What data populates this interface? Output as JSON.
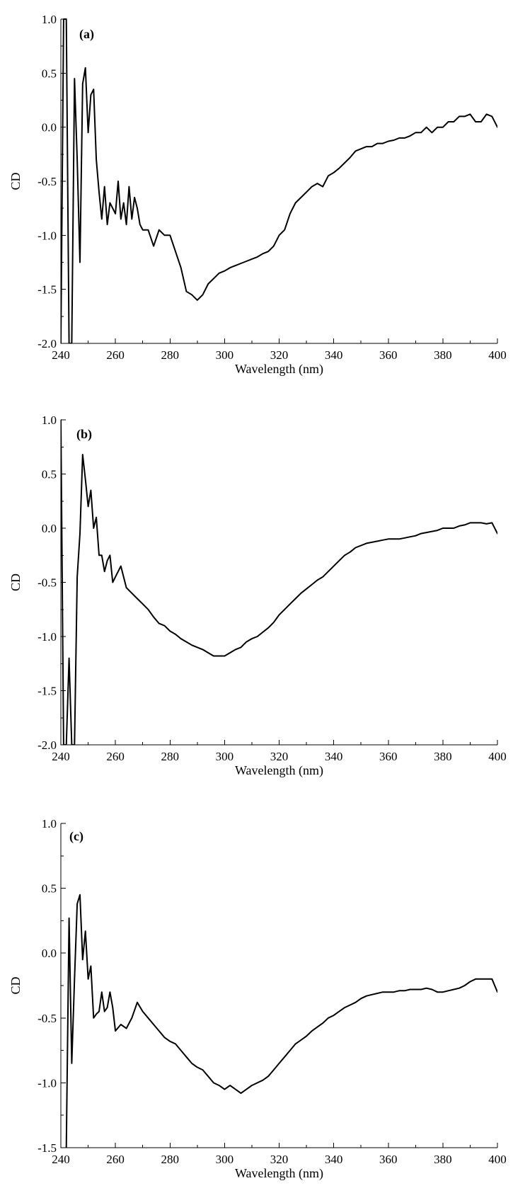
{
  "chart_data": [
    {
      "type": "line",
      "panel_label": "(a)",
      "xlabel": "Wavelength (nm)",
      "ylabel": "CD",
      "xlim": [
        240,
        400
      ],
      "ylim": [
        -2.0,
        1.0
      ],
      "xticks": [
        240,
        260,
        280,
        300,
        320,
        340,
        360,
        380,
        400
      ],
      "yticks": [
        -2.0,
        -1.5,
        -1.0,
        -0.5,
        0.0,
        0.5,
        1.0
      ],
      "xtick_labels": [
        "240",
        "260",
        "280",
        "300",
        "320",
        "340",
        "360",
        "380",
        "400"
      ],
      "ytick_labels": [
        "-2.0",
        "-1.5",
        "-1.0",
        "-0.5",
        "0.0",
        "0.5",
        "1.0"
      ],
      "grid": false,
      "series": [
        {
          "x": [
            240,
            241,
            242,
            243,
            244,
            245,
            246,
            247,
            248,
            249,
            250,
            251,
            252,
            253,
            254,
            255,
            256,
            257,
            258,
            259,
            260,
            261,
            262,
            263,
            264,
            265,
            266,
            267,
            268,
            269,
            270,
            272,
            274,
            276,
            278,
            280,
            282,
            284,
            286,
            288,
            290,
            292,
            294,
            296,
            298,
            300,
            302,
            304,
            306,
            308,
            310,
            312,
            314,
            316,
            318,
            320,
            322,
            324,
            326,
            328,
            330,
            332,
            334,
            336,
            338,
            340,
            342,
            344,
            346,
            348,
            350,
            352,
            354,
            356,
            358,
            360,
            362,
            364,
            366,
            368,
            370,
            372,
            374,
            376,
            378,
            380,
            382,
            384,
            386,
            388,
            390,
            392,
            394,
            396,
            398,
            400
          ],
          "y": [
            -2.0,
            1.0,
            1.0,
            -2.0,
            -2.0,
            0.45,
            -0.3,
            -1.25,
            0.4,
            0.55,
            -0.05,
            0.3,
            0.35,
            -0.3,
            -0.6,
            -0.85,
            -0.55,
            -0.9,
            -0.7,
            -0.75,
            -0.8,
            -0.5,
            -0.85,
            -0.7,
            -0.9,
            -0.55,
            -0.85,
            -0.65,
            -0.75,
            -0.9,
            -0.95,
            -0.95,
            -1.1,
            -0.95,
            -1.0,
            -1.0,
            -1.15,
            -1.3,
            -1.52,
            -1.55,
            -1.6,
            -1.55,
            -1.45,
            -1.4,
            -1.35,
            -1.33,
            -1.3,
            -1.28,
            -1.26,
            -1.24,
            -1.22,
            -1.2,
            -1.17,
            -1.15,
            -1.1,
            -1.0,
            -0.95,
            -0.8,
            -0.7,
            -0.65,
            -0.6,
            -0.55,
            -0.52,
            -0.55,
            -0.45,
            -0.42,
            -0.38,
            -0.33,
            -0.28,
            -0.22,
            -0.2,
            -0.18,
            -0.18,
            -0.15,
            -0.15,
            -0.13,
            -0.12,
            -0.1,
            -0.1,
            -0.08,
            -0.05,
            -0.05,
            0.0,
            -0.05,
            0.0,
            0.0,
            0.05,
            0.05,
            0.1,
            0.1,
            0.12,
            0.05,
            0.05,
            0.12,
            0.1,
            0.0
          ]
        }
      ]
    },
    {
      "type": "line",
      "panel_label": "(b)",
      "xlabel": "Wavelength (nm)",
      "ylabel": "CD",
      "xlim": [
        240,
        400
      ],
      "ylim": [
        -2.0,
        1.0
      ],
      "xticks": [
        240,
        260,
        280,
        300,
        320,
        340,
        360,
        380,
        400
      ],
      "yticks": [
        -2.0,
        -1.5,
        -1.0,
        -0.5,
        0.0,
        0.5,
        1.0
      ],
      "xtick_labels": [
        "240",
        "260",
        "280",
        "300",
        "320",
        "340",
        "360",
        "380",
        "400"
      ],
      "ytick_labels": [
        "-2.0",
        "-1.5",
        "-1.0",
        "-0.5",
        "0.0",
        "0.5",
        "1.0"
      ],
      "grid": false,
      "series": [
        {
          "x": [
            240,
            241,
            242,
            243,
            244,
            245,
            246,
            247,
            248,
            249,
            250,
            251,
            252,
            253,
            254,
            255,
            256,
            257,
            258,
            259,
            260,
            262,
            264,
            266,
            268,
            270,
            272,
            274,
            276,
            278,
            280,
            282,
            284,
            286,
            288,
            290,
            292,
            294,
            296,
            298,
            300,
            302,
            304,
            306,
            308,
            310,
            312,
            314,
            316,
            318,
            320,
            322,
            324,
            326,
            328,
            330,
            332,
            334,
            336,
            338,
            340,
            342,
            344,
            346,
            348,
            350,
            352,
            354,
            356,
            358,
            360,
            362,
            364,
            366,
            368,
            370,
            372,
            374,
            376,
            378,
            380,
            382,
            384,
            386,
            388,
            390,
            392,
            394,
            396,
            398,
            400
          ],
          "y": [
            1.0,
            -2.0,
            -2.0,
            -1.2,
            -2.0,
            -2.0,
            -0.45,
            -0.05,
            0.68,
            0.45,
            0.2,
            0.35,
            0.0,
            0.1,
            -0.25,
            -0.25,
            -0.4,
            -0.3,
            -0.25,
            -0.5,
            -0.45,
            -0.35,
            -0.55,
            -0.6,
            -0.65,
            -0.7,
            -0.75,
            -0.82,
            -0.88,
            -0.9,
            -0.95,
            -0.98,
            -1.02,
            -1.05,
            -1.08,
            -1.1,
            -1.12,
            -1.15,
            -1.18,
            -1.18,
            -1.18,
            -1.15,
            -1.12,
            -1.1,
            -1.05,
            -1.02,
            -1.0,
            -0.96,
            -0.92,
            -0.87,
            -0.8,
            -0.75,
            -0.7,
            -0.65,
            -0.6,
            -0.56,
            -0.52,
            -0.48,
            -0.45,
            -0.4,
            -0.35,
            -0.3,
            -0.25,
            -0.22,
            -0.18,
            -0.16,
            -0.14,
            -0.13,
            -0.12,
            -0.11,
            -0.1,
            -0.1,
            -0.1,
            -0.09,
            -0.08,
            -0.07,
            -0.05,
            -0.04,
            -0.03,
            -0.02,
            0.0,
            0.0,
            0.0,
            0.02,
            0.03,
            0.05,
            0.05,
            0.05,
            0.04,
            0.05,
            -0.05
          ]
        }
      ]
    },
    {
      "type": "line",
      "panel_label": "(c)",
      "xlabel": "Wavelength (nm)",
      "ylabel": "CD",
      "xlim": [
        240,
        400
      ],
      "ylim": [
        -1.5,
        1.0
      ],
      "xticks": [
        240,
        260,
        280,
        300,
        320,
        340,
        360,
        380,
        400
      ],
      "yticks": [
        -1.5,
        -1.0,
        -0.5,
        0.0,
        0.5,
        1.0
      ],
      "xtick_labels": [
        "240",
        "260",
        "280",
        "300",
        "320",
        "340",
        "360",
        "380",
        "400"
      ],
      "ytick_labels": [
        "-1.5",
        "-1.0",
        "-0.5",
        "0.0",
        "0.5",
        "1.0"
      ],
      "grid": false,
      "series": [
        {
          "x": [
            242,
            243,
            244,
            245,
            246,
            247,
            248,
            249,
            250,
            251,
            252,
            253,
            254,
            255,
            256,
            257,
            258,
            259,
            260,
            262,
            264,
            266,
            268,
            270,
            272,
            274,
            276,
            278,
            280,
            282,
            284,
            286,
            288,
            290,
            292,
            294,
            296,
            298,
            300,
            302,
            304,
            306,
            308,
            310,
            312,
            314,
            316,
            318,
            320,
            322,
            324,
            326,
            328,
            330,
            332,
            334,
            336,
            338,
            340,
            342,
            344,
            346,
            348,
            350,
            352,
            354,
            356,
            358,
            360,
            362,
            364,
            366,
            368,
            370,
            372,
            374,
            376,
            378,
            380,
            382,
            384,
            386,
            388,
            390,
            392,
            394,
            396,
            398,
            400
          ],
          "y": [
            -1.5,
            0.27,
            -0.85,
            -0.2,
            0.38,
            0.45,
            -0.05,
            0.17,
            -0.2,
            -0.1,
            -0.5,
            -0.47,
            -0.45,
            -0.3,
            -0.45,
            -0.42,
            -0.3,
            -0.42,
            -0.6,
            -0.55,
            -0.58,
            -0.5,
            -0.38,
            -0.45,
            -0.5,
            -0.55,
            -0.6,
            -0.65,
            -0.68,
            -0.7,
            -0.75,
            -0.8,
            -0.85,
            -0.88,
            -0.9,
            -0.95,
            -1.0,
            -1.02,
            -1.05,
            -1.02,
            -1.05,
            -1.08,
            -1.05,
            -1.02,
            -1.0,
            -0.98,
            -0.95,
            -0.9,
            -0.85,
            -0.8,
            -0.75,
            -0.7,
            -0.67,
            -0.64,
            -0.6,
            -0.57,
            -0.54,
            -0.5,
            -0.48,
            -0.45,
            -0.42,
            -0.4,
            -0.38,
            -0.35,
            -0.33,
            -0.32,
            -0.31,
            -0.3,
            -0.3,
            -0.3,
            -0.29,
            -0.29,
            -0.28,
            -0.28,
            -0.28,
            -0.27,
            -0.28,
            -0.3,
            -0.3,
            -0.29,
            -0.28,
            -0.27,
            -0.25,
            -0.22,
            -0.2,
            -0.2,
            -0.2,
            -0.2,
            -0.3
          ]
        }
      ]
    }
  ]
}
